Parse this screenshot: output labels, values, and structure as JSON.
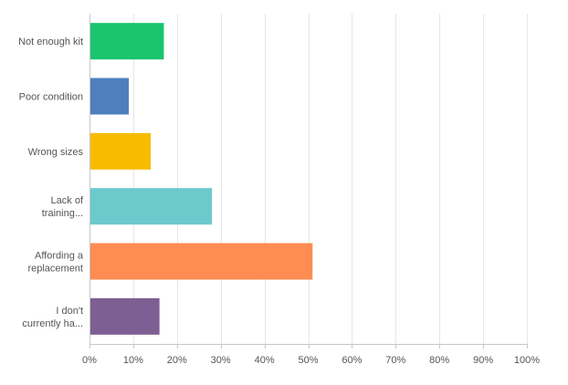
{
  "chart_data": {
    "type": "bar",
    "orientation": "horizontal",
    "categories": [
      [
        "Not enough kit"
      ],
      [
        "Poor condition"
      ],
      [
        "Wrong sizes"
      ],
      [
        "Lack of",
        "training..."
      ],
      [
        "Affording a",
        "replacement"
      ],
      [
        "I don't",
        "currently ha..."
      ]
    ],
    "values": [
      17,
      9,
      14,
      28,
      51,
      16
    ],
    "colors": [
      "#1bc46f",
      "#4f7fbd",
      "#f7bc00",
      "#6ccacc",
      "#ff8c52",
      "#7e5f93"
    ],
    "xlim": [
      0,
      100
    ],
    "xticks": [
      0,
      10,
      20,
      30,
      40,
      50,
      60,
      70,
      80,
      90,
      100
    ],
    "xtick_labels": [
      "0%",
      "10%",
      "20%",
      "30%",
      "40%",
      "50%",
      "60%",
      "70%",
      "80%",
      "90%",
      "100%"
    ],
    "grid": true,
    "legend": "none"
  }
}
